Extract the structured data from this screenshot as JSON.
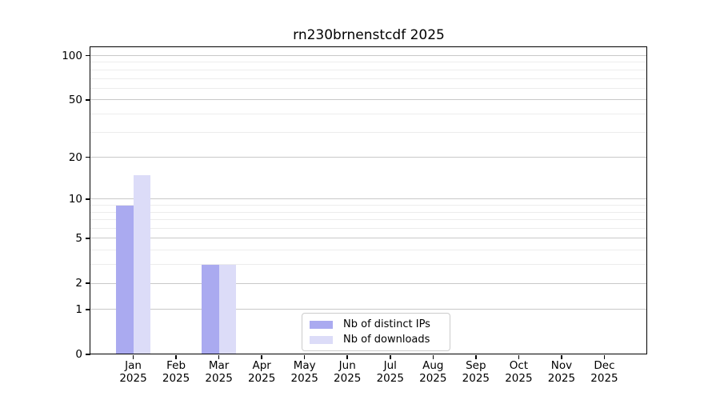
{
  "title": "rn230brnenstcdf 2025",
  "chart_data": {
    "type": "bar",
    "title": "rn230brnenstcdf 2025",
    "categories": [
      "Jan 2025",
      "Feb 2025",
      "Mar 2025",
      "Apr 2025",
      "May 2025",
      "Jun 2025",
      "Jul 2025",
      "Aug 2025",
      "Sep 2025",
      "Oct 2025",
      "Nov 2025",
      "Dec 2025"
    ],
    "series": [
      {
        "name": "Nb of distinct IPs",
        "color": "#aaaaf0",
        "values": [
          9,
          0,
          3,
          0,
          0,
          0,
          0,
          0,
          0,
          0,
          0,
          0
        ]
      },
      {
        "name": "Nb of downloads",
        "color": "#dcdcf8",
        "values": [
          15,
          0,
          3,
          0,
          0,
          0,
          0,
          0,
          0,
          0,
          0,
          0
        ]
      }
    ],
    "xlabel": "",
    "ylabel": "",
    "y_axis": {
      "scale": "log10(1+v)",
      "tick_values": [
        0,
        1,
        2,
        5,
        10,
        20,
        50,
        100
      ],
      "minor_gridline_values": [
        3,
        4,
        6,
        7,
        8,
        9,
        30,
        40,
        60,
        70,
        80,
        90
      ],
      "top_value": 114
    },
    "grid": "both",
    "legend_position": "lower center",
    "colors": {
      "major_grid": "#c9c9c9",
      "minor_grid": "#ececec",
      "spine": "#000000",
      "legend_border": "#cccccc",
      "background": "#ffffff"
    }
  }
}
